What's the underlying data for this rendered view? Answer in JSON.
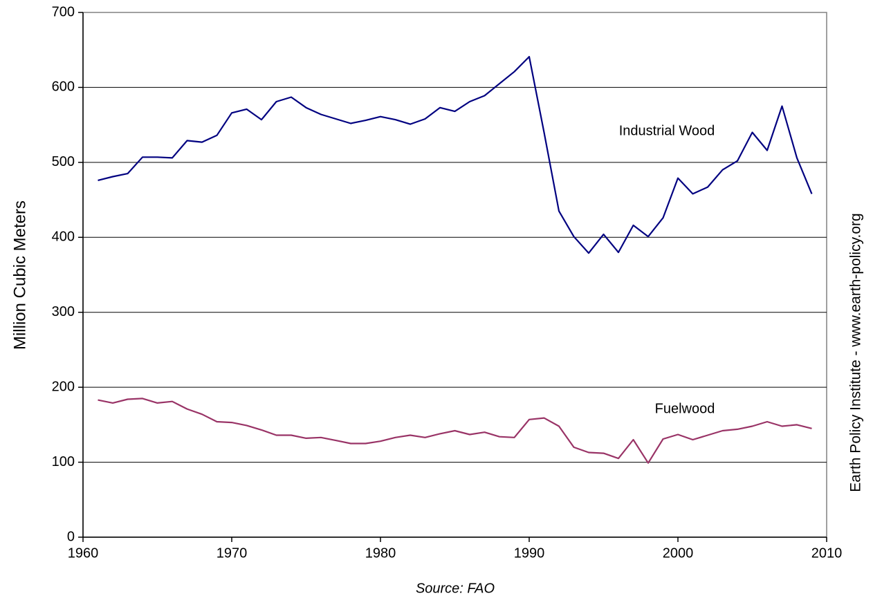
{
  "chart_data": {
    "type": "line",
    "y_label": "Million Cubic Meters",
    "source": "Source: FAO",
    "side_note": "Earth Policy Institute - www.earth-policy.org",
    "x": [
      1961,
      1962,
      1963,
      1964,
      1965,
      1966,
      1967,
      1968,
      1969,
      1970,
      1971,
      1972,
      1973,
      1974,
      1975,
      1976,
      1977,
      1978,
      1979,
      1980,
      1981,
      1982,
      1983,
      1984,
      1985,
      1986,
      1987,
      1988,
      1989,
      1990,
      1991,
      1992,
      1993,
      1994,
      1995,
      1996,
      1997,
      1998,
      1999,
      2000,
      2001,
      2002,
      2003,
      2004,
      2005,
      2006,
      2007,
      2008,
      2009
    ],
    "series": [
      {
        "name": "Industrial Wood",
        "color": "#000080",
        "values": [
          476,
          481,
          485,
          507,
          507,
          506,
          529,
          527,
          536,
          566,
          571,
          557,
          581,
          587,
          573,
          564,
          558,
          552,
          556,
          561,
          557,
          551,
          558,
          573,
          568,
          581,
          589,
          605,
          621,
          641,
          540,
          435,
          401,
          379,
          404,
          380,
          416,
          401,
          426,
          479,
          458,
          467,
          490,
          502,
          540,
          516,
          575,
          506,
          458
        ]
      },
      {
        "name": "Fuelwood",
        "color": "#993366",
        "values": [
          183,
          179,
          184,
          185,
          179,
          181,
          171,
          164,
          154,
          153,
          149,
          143,
          136,
          136,
          132,
          133,
          129,
          125,
          125,
          128,
          133,
          136,
          133,
          138,
          142,
          137,
          140,
          134,
          133,
          157,
          159,
          148,
          120,
          113,
          112,
          105,
          130,
          99,
          131,
          137,
          130,
          136,
          142,
          144,
          148,
          154,
          148,
          150,
          145
        ]
      }
    ],
    "xlim": [
      1960,
      2010
    ],
    "xticks": [
      1960,
      1970,
      1980,
      1990,
      2000,
      2010
    ],
    "ylim": [
      0,
      700
    ],
    "yticks": [
      0,
      100,
      200,
      300,
      400,
      500,
      600,
      700
    ],
    "grid": true
  }
}
